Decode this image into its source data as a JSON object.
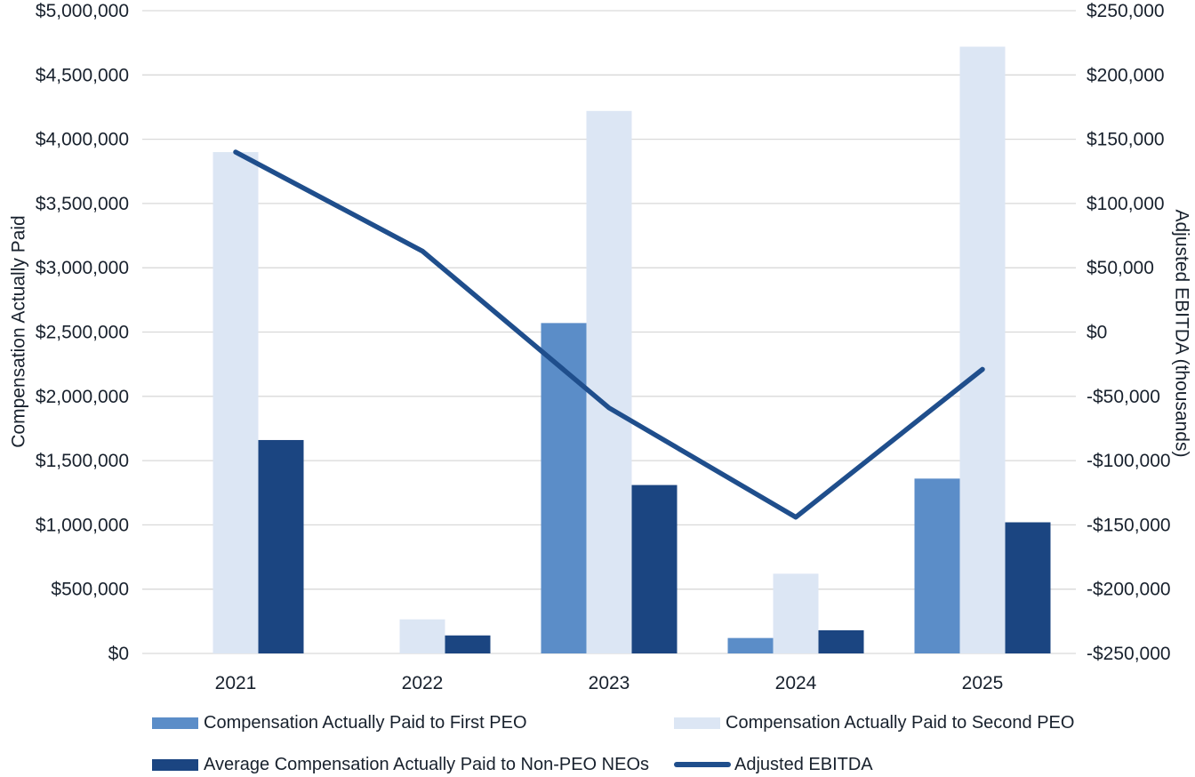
{
  "chart_data": {
    "type": "combo-bar-line",
    "title": "",
    "categories": [
      "2021",
      "2022",
      "2023",
      "2024",
      "2025"
    ],
    "series": [
      {
        "id": "first-peo",
        "name": "Compensation Actually Paid to First PEO",
        "type": "bar",
        "axis": "left",
        "color": "#5B8DC8",
        "values": [
          null,
          null,
          2570000,
          120000,
          1360000
        ]
      },
      {
        "id": "second-peo",
        "name": "Compensation Actually Paid to Second PEO",
        "type": "bar",
        "axis": "left",
        "color": "#DCE6F4",
        "values": [
          3900000,
          265000,
          4220000,
          620000,
          4720000
        ]
      },
      {
        "id": "non-peo-neos",
        "name": "Average Compensation Actually Paid to Non-PEO NEOs",
        "type": "bar",
        "axis": "left",
        "color": "#1B4581",
        "values": [
          1660000,
          140000,
          1310000,
          180000,
          1020000
        ]
      },
      {
        "id": "adjusted-ebitda",
        "name": "Adjusted EBITDA",
        "type": "line",
        "axis": "right",
        "color": "#1F4E8C",
        "values": [
          140000,
          63000,
          -59000,
          -144000,
          -29000
        ]
      }
    ],
    "left_axis": {
      "title": "Compensation Actually Paid",
      "min": 0,
      "max": 5000000,
      "tick_values": [
        5000000,
        4500000,
        4000000,
        3500000,
        3000000,
        2500000,
        2000000,
        1500000,
        1000000,
        500000,
        0
      ],
      "tick_labels": [
        "$5,000,000",
        "$4,500,000",
        "$4,000,000",
        "$3,500,000",
        "$3,000,000",
        "$2,500,000",
        "$2,000,000",
        "$1,500,000",
        "$1,000,000",
        "$500,000",
        "$0"
      ]
    },
    "right_axis": {
      "title": "Adjusted EBITDA (thousands)",
      "min": -250000,
      "max": 250000,
      "tick_values": [
        250000,
        200000,
        150000,
        100000,
        50000,
        0,
        -50000,
        -100000,
        -150000,
        -200000,
        -250000
      ],
      "tick_labels": [
        "$250,000",
        "$200,000",
        "$150,000",
        "$100,000",
        "$50,000",
        "$0",
        "-$50,000",
        "-$100,000",
        "-$150,000",
        "-$200,000",
        "-$250,000"
      ]
    },
    "grid": true,
    "grid_color": "#D9D9D9",
    "text_color": "#18212D",
    "legend_position": "bottom"
  }
}
